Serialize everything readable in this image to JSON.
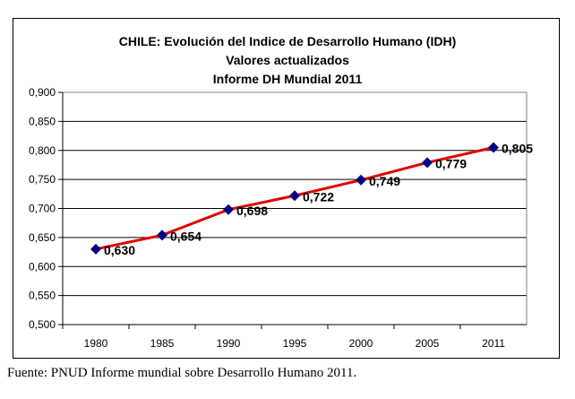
{
  "chart_data": {
    "type": "line",
    "title": [
      "CHILE: Evolución del Indice de Desarrollo Humano (IDH)",
      "Valores actualizados",
      "Informe DH Mundial 2011"
    ],
    "categories": [
      "1980",
      "1985",
      "1990",
      "1995",
      "2000",
      "2005",
      "2011"
    ],
    "values": [
      0.63,
      0.654,
      0.698,
      0.722,
      0.749,
      0.779,
      0.805
    ],
    "data_labels": [
      "0,630",
      "0,654",
      "0,698",
      "0,722",
      "0,749",
      "0,779",
      "0,805"
    ],
    "ylim": [
      0.5,
      0.9
    ],
    "yticks": [
      "0,500",
      "0,550",
      "0,600",
      "0,650",
      "0,700",
      "0,750",
      "0,800",
      "0,850",
      "0,900"
    ],
    "grid": true,
    "xlabel": "",
    "ylabel": "",
    "line_color": "#e00000",
    "marker_color": "#000080"
  },
  "source": "Fuente: PNUD Informe mundial sobre Desarrollo Humano 2011."
}
